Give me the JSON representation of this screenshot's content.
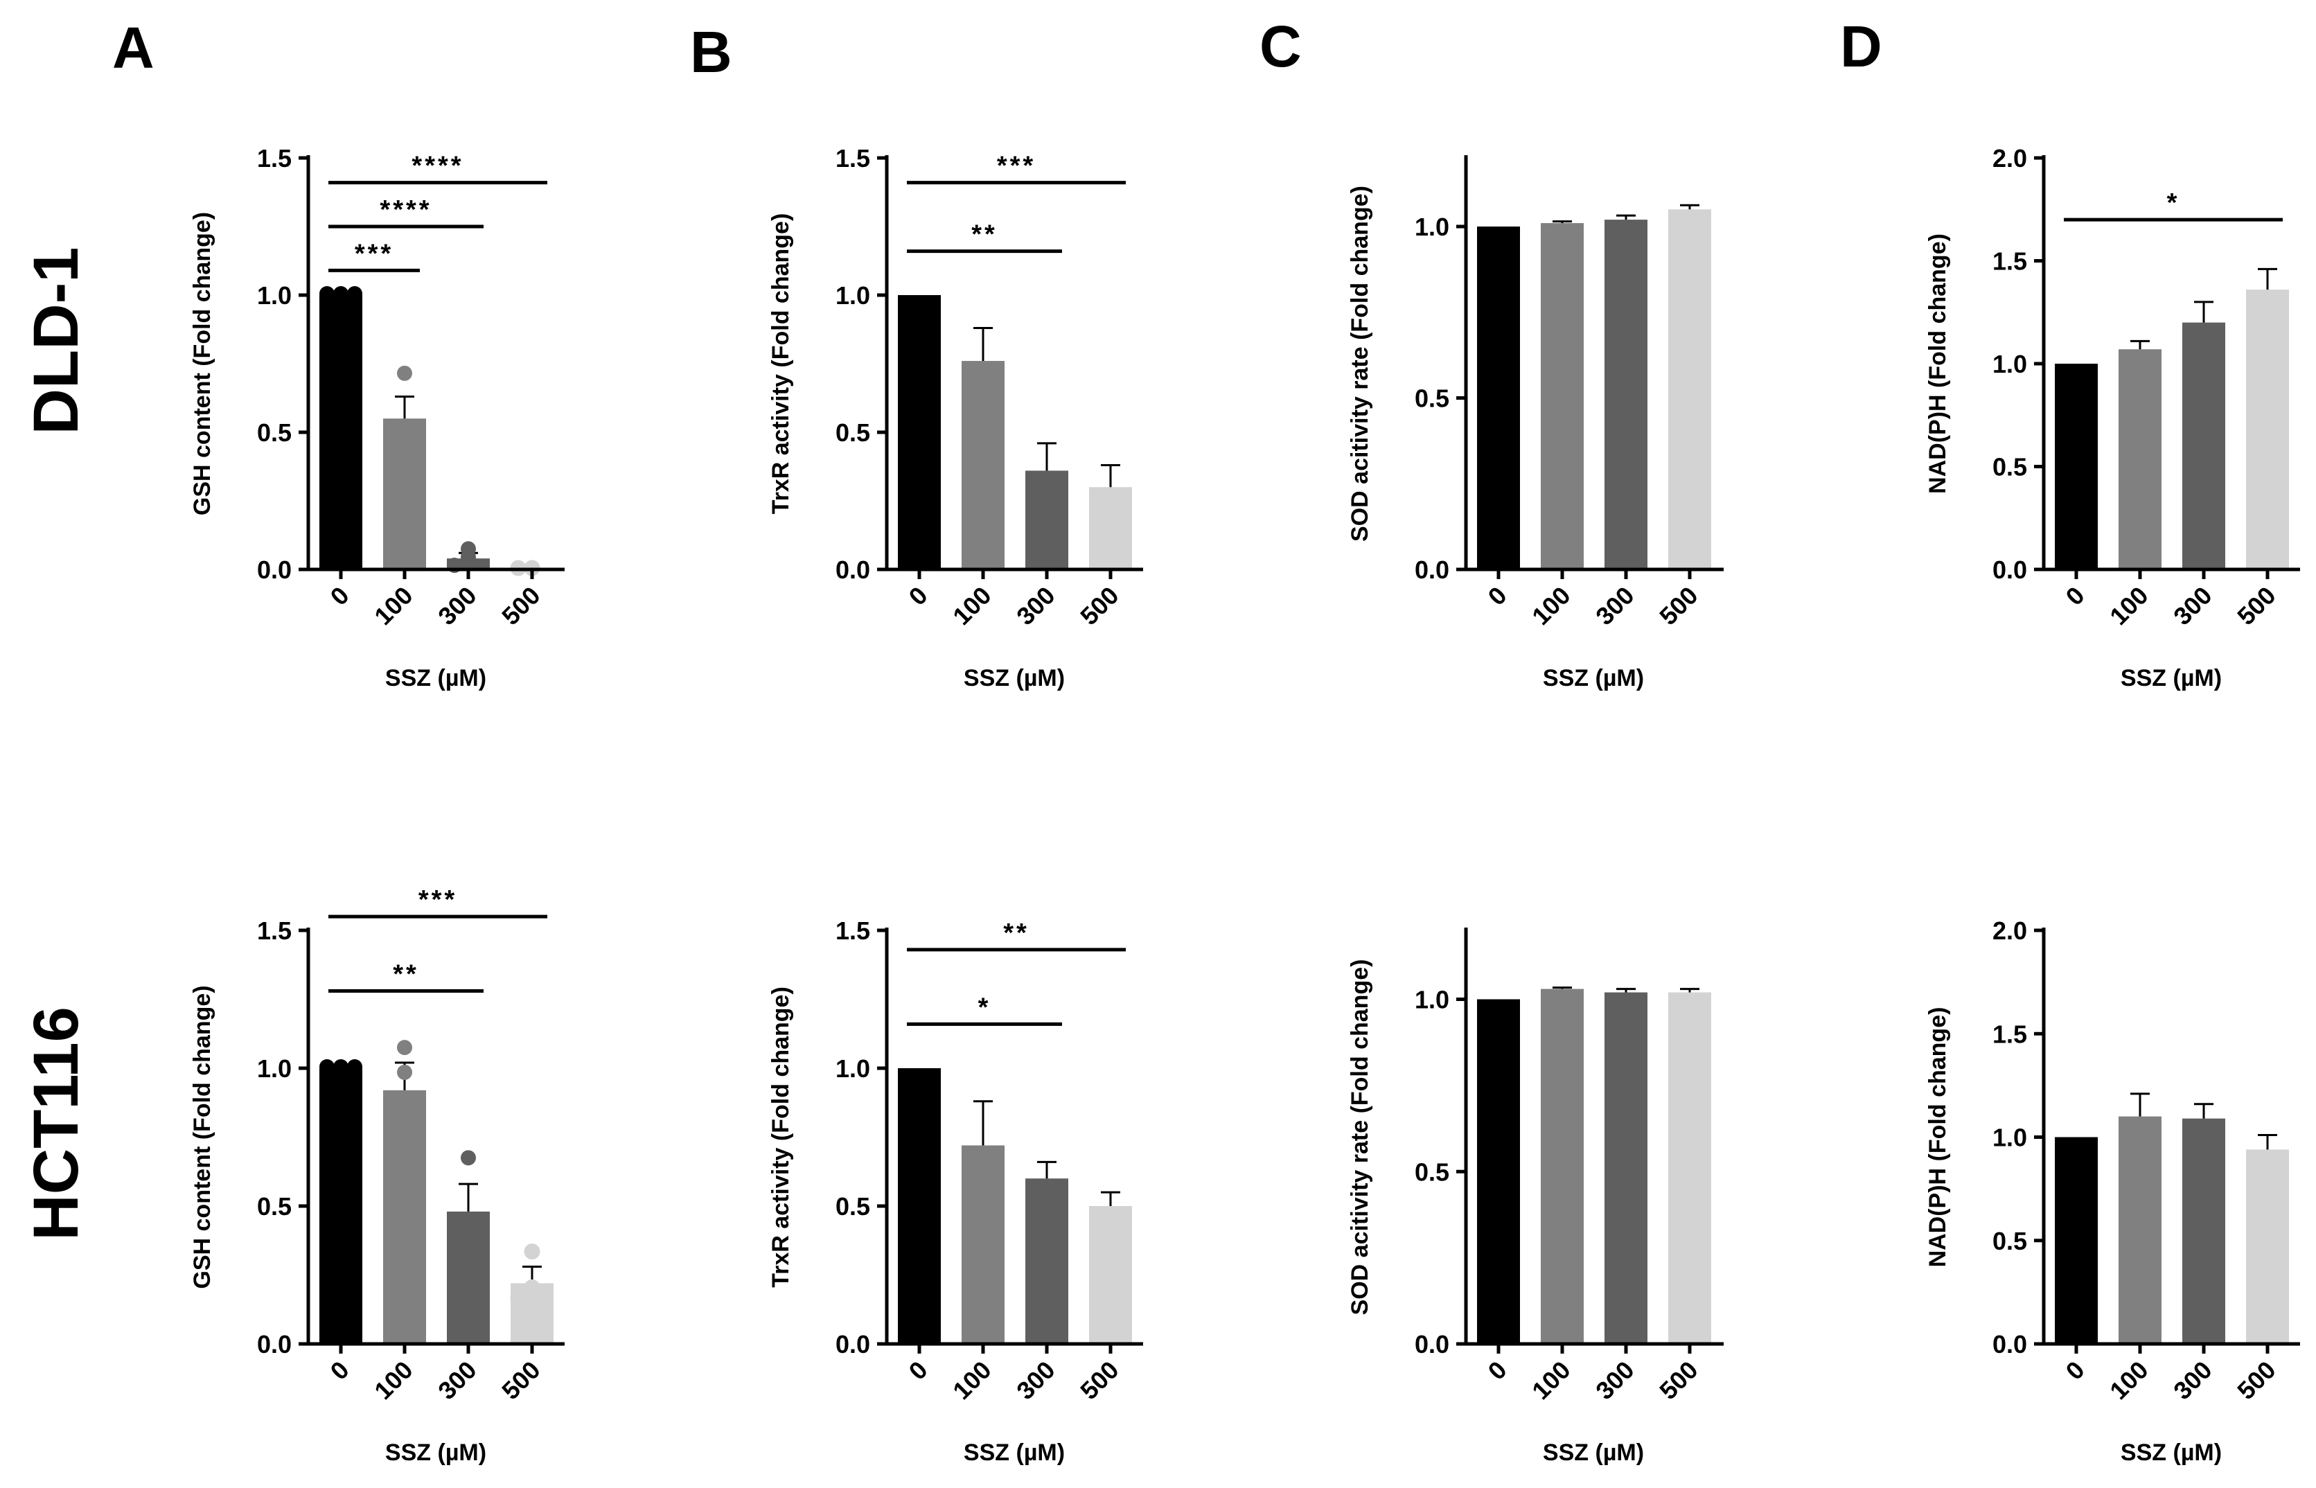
{
  "figure": {
    "panel_letters": [
      "A",
      "B",
      "C",
      "D"
    ],
    "row_labels": [
      "DLD-1",
      "HCT116"
    ]
  },
  "colors": {
    "bar": [
      "#000000",
      "#808080",
      "#5f5f5f",
      "#d3d3d3"
    ],
    "axis": "#000000"
  },
  "chart_data": [
    {
      "type": "bar",
      "panel": "A",
      "cell_line": "DLD-1",
      "title": "",
      "categories": [
        "0",
        "100",
        "300",
        "500"
      ],
      "values": [
        1.0,
        0.55,
        0.04,
        0.0
      ],
      "errors": [
        0.0,
        0.08,
        0.02,
        0.0
      ],
      "points": [
        [
          1.0,
          1.0,
          1.0
        ],
        [
          0.47,
          0.5,
          0.71
        ],
        [
          0.01,
          0.04,
          0.07
        ],
        [
          0.0,
          0.0,
          0.0
        ]
      ],
      "xlabel": "SSZ (µM)",
      "ylabel": "GSH content (Fold change)",
      "ylim": [
        0,
        1.5
      ],
      "yticks": [
        "0.0",
        "0.5",
        "1.0",
        "1.5"
      ],
      "significance": [
        {
          "from": 0,
          "to": 1,
          "y": 1.09,
          "label": "***"
        },
        {
          "from": 0,
          "to": 2,
          "y": 1.25,
          "label": "****"
        },
        {
          "from": 0,
          "to": 3,
          "y": 1.41,
          "label": "****"
        }
      ]
    },
    {
      "type": "bar",
      "panel": "B",
      "cell_line": "DLD-1",
      "title": "",
      "categories": [
        "0",
        "100",
        "300",
        "500"
      ],
      "values": [
        1.0,
        0.76,
        0.36,
        0.3
      ],
      "errors": [
        0.0,
        0.12,
        0.1,
        0.08
      ],
      "xlabel": "SSZ (µM)",
      "ylabel": "TrxR activity (Fold change)",
      "ylim": [
        0,
        1.5
      ],
      "yticks": [
        "0.0",
        "0.5",
        "1.0",
        "1.5"
      ],
      "significance": [
        {
          "from": 0,
          "to": 2,
          "y": 1.16,
          "label": "**"
        },
        {
          "from": 0,
          "to": 3,
          "y": 1.41,
          "label": "***"
        }
      ]
    },
    {
      "type": "bar",
      "panel": "C",
      "cell_line": "DLD-1",
      "title": "",
      "categories": [
        "0",
        "100",
        "300",
        "500"
      ],
      "values": [
        1.0,
        1.01,
        1.02,
        1.05
      ],
      "errors": [
        0.0,
        0.005,
        0.012,
        0.012
      ],
      "xlabel": "SSZ (µM)",
      "ylabel": "SOD acitivity rate (Fold change)",
      "ylim": [
        0,
        1.2
      ],
      "yticks": [
        "0.0",
        "0.5",
        "1.0"
      ],
      "significance": []
    },
    {
      "type": "bar",
      "panel": "D",
      "cell_line": "DLD-1",
      "title": "",
      "categories": [
        "0",
        "100",
        "300",
        "500"
      ],
      "values": [
        1.0,
        1.07,
        1.2,
        1.36
      ],
      "errors": [
        0.0,
        0.04,
        0.1,
        0.1
      ],
      "xlabel": "SSZ (µM)",
      "ylabel": "NAD(P)H (Fold change)",
      "ylim": [
        0,
        2.0
      ],
      "yticks": [
        "0.0",
        "0.5",
        "1.0",
        "1.5",
        "2.0"
      ],
      "significance": [
        {
          "from": 0,
          "to": 3,
          "y": 1.7,
          "label": "*"
        }
      ]
    },
    {
      "type": "bar",
      "panel": "A",
      "cell_line": "HCT116",
      "title": "",
      "categories": [
        "0",
        "100",
        "300",
        "500"
      ],
      "values": [
        1.0,
        0.92,
        0.48,
        0.22
      ],
      "errors": [
        0.0,
        0.1,
        0.1,
        0.06
      ],
      "points": [
        [
          1.0,
          1.0,
          1.0
        ],
        [
          0.84,
          0.98,
          1.07
        ],
        [
          0.35,
          0.42,
          0.67
        ],
        [
          0.16,
          0.2,
          0.33
        ]
      ],
      "xlabel": "SSZ (µM)",
      "ylabel": "GSH content (Fold change)",
      "ylim": [
        0,
        1.5
      ],
      "yticks": [
        "0.0",
        "0.5",
        "1.0",
        "1.5"
      ],
      "significance": [
        {
          "from": 0,
          "to": 2,
          "y": 1.28,
          "label": "**"
        },
        {
          "from": 0,
          "to": 3,
          "y": 1.55,
          "label": "***"
        }
      ]
    },
    {
      "type": "bar",
      "panel": "B",
      "cell_line": "HCT116",
      "title": "",
      "categories": [
        "0",
        "100",
        "300",
        "500"
      ],
      "values": [
        1.0,
        0.72,
        0.6,
        0.5
      ],
      "errors": [
        0.0,
        0.16,
        0.06,
        0.05
      ],
      "xlabel": "SSZ (µM)",
      "ylabel": "TrxR activity (Fold change)",
      "ylim": [
        0,
        1.5
      ],
      "yticks": [
        "0.0",
        "0.5",
        "1.0",
        "1.5"
      ],
      "significance": [
        {
          "from": 0,
          "to": 2,
          "y": 1.16,
          "label": "*"
        },
        {
          "from": 0,
          "to": 3,
          "y": 1.43,
          "label": "**"
        }
      ]
    },
    {
      "type": "bar",
      "panel": "C",
      "cell_line": "HCT116",
      "title": "",
      "categories": [
        "0",
        "100",
        "300",
        "500"
      ],
      "values": [
        1.0,
        1.03,
        1.02,
        1.02
      ],
      "errors": [
        0.0,
        0.004,
        0.01,
        0.01
      ],
      "xlabel": "SSZ (µM)",
      "ylabel": "SOD acitivity rate (Fold change)",
      "ylim": [
        0,
        1.2
      ],
      "yticks": [
        "0.0",
        "0.5",
        "1.0"
      ],
      "significance": []
    },
    {
      "type": "bar",
      "panel": "D",
      "cell_line": "HCT116",
      "title": "",
      "categories": [
        "0",
        "100",
        "300",
        "500"
      ],
      "values": [
        1.0,
        1.1,
        1.09,
        0.94
      ],
      "errors": [
        0.0,
        0.11,
        0.07,
        0.07
      ],
      "xlabel": "SSZ (µM)",
      "ylabel": "NAD(P)H (Fold change)",
      "ylim": [
        0,
        2.0
      ],
      "yticks": [
        "0.0",
        "0.5",
        "1.0",
        "1.5",
        "2.0"
      ],
      "significance": []
    }
  ]
}
